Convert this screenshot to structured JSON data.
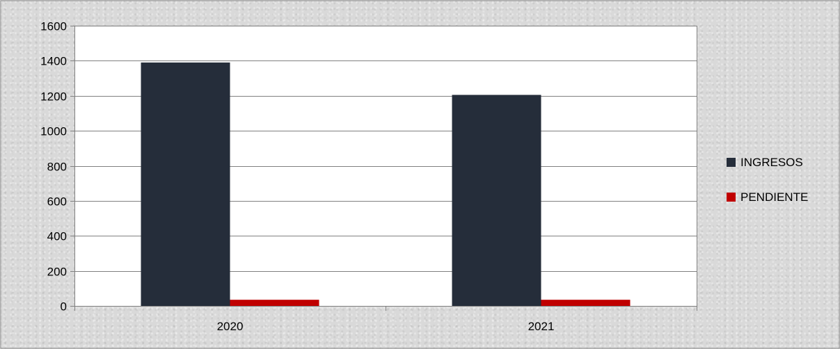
{
  "chart_data": {
    "type": "bar",
    "categories": [
      "2020",
      "2021"
    ],
    "series": [
      {
        "name": "INGRESOS",
        "values": [
          1390,
          1205
        ],
        "color": "#252d3a"
      },
      {
        "name": "PENDIENTE",
        "values": [
          35,
          35
        ],
        "color": "#c00000"
      }
    ],
    "title": "",
    "xlabel": "",
    "ylabel": "",
    "ylim": [
      0,
      1600
    ],
    "yticks": [
      0,
      200,
      400,
      600,
      800,
      1000,
      1200,
      1400,
      1600
    ],
    "grid": true,
    "legend_position": "right",
    "colors": {
      "grid": "#808080",
      "axis": "#808080",
      "text": "#000000",
      "plot_background": "#ffffff",
      "frame": "#8c8c8c"
    }
  }
}
